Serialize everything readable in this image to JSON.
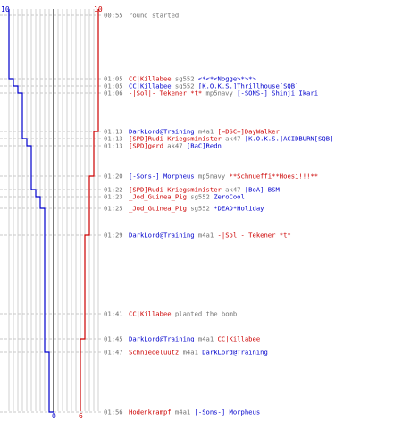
{
  "colors": {
    "ct": "#0000cc",
    "t": "#cc0000",
    "text": "#707070",
    "grid": "#d0d0d0",
    "rows": "#c8c8c8",
    "divider": "#222222"
  },
  "axis": {
    "ct_start": "10",
    "t_start": "10",
    "ct_end": "0",
    "t_end": "6"
  },
  "events": [
    {
      "time": "00:55",
      "parts": [
        {
          "text": "round started",
          "team": "text"
        }
      ]
    },
    {
      "time": "01:05",
      "parts": [
        {
          "text": "CC|Killabee",
          "team": "t"
        },
        {
          "text": " sg552 ",
          "team": "text"
        },
        {
          "text": "<*<*<Nogge>*>*>",
          "team": "ct"
        }
      ]
    },
    {
      "time": "01:05",
      "parts": [
        {
          "text": "CC|Killabee",
          "team": "ct"
        },
        {
          "text": " sg552 ",
          "team": "text"
        },
        {
          "text": "[K.O.K.S.]Thrillhouse[SQB]",
          "team": "ct"
        }
      ]
    },
    {
      "time": "01:06",
      "parts": [
        {
          "text": "-|Sol|- Tekener *t*",
          "team": "t"
        },
        {
          "text": " mp5navy ",
          "team": "text"
        },
        {
          "text": "[-SONS-] Shinji_Ikari",
          "team": "ct"
        }
      ]
    },
    {
      "time": "01:13",
      "parts": [
        {
          "text": "DarkLord@Training",
          "team": "ct"
        },
        {
          "text": " m4a1 ",
          "team": "text"
        },
        {
          "text": "[=DSC=]DayWalker",
          "team": "t"
        }
      ]
    },
    {
      "time": "01:13",
      "parts": [
        {
          "text": "[SPD]Rudi-Kriegsminister",
          "team": "t"
        },
        {
          "text": " ak47 ",
          "team": "text"
        },
        {
          "text": "[K.O.K.S.]ACIDBURN[SQB]",
          "team": "ct"
        }
      ]
    },
    {
      "time": "01:13",
      "parts": [
        {
          "text": "[SPD]gerd",
          "team": "t"
        },
        {
          "text": " ak47 ",
          "team": "text"
        },
        {
          "text": "[BaC]Redn",
          "team": "ct"
        }
      ]
    },
    {
      "time": "01:20",
      "parts": [
        {
          "text": "[-Sons-] Morpheus",
          "team": "ct"
        },
        {
          "text": " mp5navy ",
          "team": "text"
        },
        {
          "text": "**Schnueffi**Hoesi!!!**",
          "team": "t"
        }
      ]
    },
    {
      "time": "01:22",
      "parts": [
        {
          "text": "[SPD]Rudi-Kriegsminister",
          "team": "t"
        },
        {
          "text": " ak47 ",
          "team": "text"
        },
        {
          "text": "[BoA] BSM",
          "team": "ct"
        }
      ]
    },
    {
      "time": "01:23",
      "parts": [
        {
          "text": "_Jod_Guinea_Pig",
          "team": "t"
        },
        {
          "text": " sg552 ",
          "team": "text"
        },
        {
          "text": "ZeroCool",
          "team": "ct"
        }
      ]
    },
    {
      "time": "01:25",
      "parts": [
        {
          "text": "_Jod_Guinea_Pig",
          "team": "t"
        },
        {
          "text": " sg552 ",
          "team": "text"
        },
        {
          "text": "*DEAD*Holiday",
          "team": "ct"
        }
      ]
    },
    {
      "time": "01:29",
      "parts": [
        {
          "text": "DarkLord@Training",
          "team": "ct"
        },
        {
          "text": " m4a1 ",
          "team": "text"
        },
        {
          "text": "-|Sol|- Tekener *t*",
          "team": "t"
        }
      ]
    },
    {
      "time": "01:41",
      "parts": [
        {
          "text": "CC|Killabee",
          "team": "t"
        },
        {
          "text": " planted the bomb",
          "team": "text"
        }
      ]
    },
    {
      "time": "01:45",
      "parts": [
        {
          "text": "DarkLord@Training",
          "team": "ct"
        },
        {
          "text": " m4a1 ",
          "team": "text"
        },
        {
          "text": "CC|Killabee",
          "team": "t"
        }
      ]
    },
    {
      "time": "01:47",
      "parts": [
        {
          "text": "Schniedeluutz",
          "team": "t"
        },
        {
          "text": " m4a1 ",
          "team": "text"
        },
        {
          "text": "DarkLord@Training",
          "team": "ct"
        }
      ]
    },
    {
      "time": "01:56",
      "parts": [
        {
          "text": "Hodenkrampf",
          "team": "t"
        },
        {
          "text": " m4a1 ",
          "team": "text"
        },
        {
          "text": "[-Sons-] Morpheus",
          "team": "ct"
        }
      ]
    }
  ],
  "chart_data": {
    "type": "line",
    "title": "",
    "xlabel": "",
    "ylabel": "",
    "x": [
      "00:55",
      "01:05",
      "01:05",
      "01:06",
      "01:13",
      "01:13",
      "01:13",
      "01:20",
      "01:22",
      "01:23",
      "01:25",
      "01:29",
      "01:41",
      "01:45",
      "01:47",
      "01:56"
    ],
    "series": [
      {
        "team": "ct",
        "values": [
          10,
          9,
          8,
          7,
          7,
          6,
          5,
          5,
          4,
          3,
          2,
          2,
          2,
          2,
          1,
          0
        ]
      },
      {
        "team": "t",
        "values": [
          10,
          10,
          10,
          10,
          9,
          9,
          9,
          8,
          8,
          8,
          8,
          7,
          7,
          6,
          6,
          6
        ]
      }
    ],
    "ylim": [
      0,
      10
    ],
    "grid": true
  }
}
